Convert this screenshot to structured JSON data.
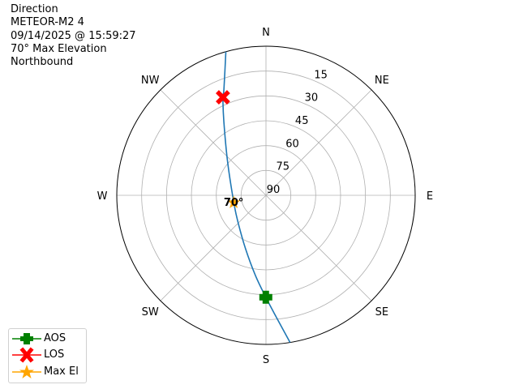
{
  "title_lines": [
    "Direction",
    "METEOR-M2 4",
    "09/14/2025 @ 15:59:27",
    "70° Max Elevation",
    "Northbound"
  ],
  "chart_data": {
    "type": "polar",
    "theta_direction": "clockwise",
    "theta_zero": "N",
    "angular_labels": [
      {
        "az": 0,
        "label": "N"
      },
      {
        "az": 45,
        "label": "NE"
      },
      {
        "az": 90,
        "label": "E"
      },
      {
        "az": 135,
        "label": "SE"
      },
      {
        "az": 180,
        "label": "S"
      },
      {
        "az": 225,
        "label": "SW"
      },
      {
        "az": 270,
        "label": "W"
      },
      {
        "az": 315,
        "label": "NW"
      }
    ],
    "radial_axis": {
      "quantity": "elevation",
      "range": [
        90,
        0
      ],
      "ticks": [
        15,
        30,
        45,
        60,
        75,
        90
      ],
      "label_az": 22.5
    },
    "grid": true,
    "track": {
      "color": "#1f77b4",
      "points": [
        {
          "az": 170.7,
          "el": 0
        },
        {
          "az": 175.4,
          "el": 16.9
        },
        {
          "az": 180.1,
          "el": 28.5
        },
        {
          "az": 187.5,
          "el": 41.2
        },
        {
          "az": 201.1,
          "el": 55.6
        },
        {
          "az": 227.1,
          "el": 66.8
        },
        {
          "az": 257.2,
          "el": 70.1
        },
        {
          "az": 310.9,
          "el": 59.4
        },
        {
          "az": 330.3,
          "el": 38.7
        },
        {
          "az": 336.3,
          "el": 25.4
        },
        {
          "az": 338.4,
          "el": 21.1
        },
        {
          "az": 344.4,
          "el": 0
        }
      ]
    },
    "markers": [
      {
        "name": "AOS",
        "az": 180.1,
        "el": 28.5,
        "color": "#008000",
        "shape": "plus"
      },
      {
        "name": "LOS",
        "az": 336.3,
        "el": 25.4,
        "color": "#ff0000",
        "shape": "x"
      },
      {
        "name": "Max El",
        "az": 257.2,
        "el": 70,
        "color": "#ffa500",
        "shape": "star"
      }
    ],
    "annotations": [
      {
        "text": "70°",
        "az": 257.2,
        "el": 70
      }
    ],
    "legend": {
      "position": "bottom-left",
      "entries": [
        "AOS",
        "LOS",
        "Max El"
      ]
    }
  }
}
